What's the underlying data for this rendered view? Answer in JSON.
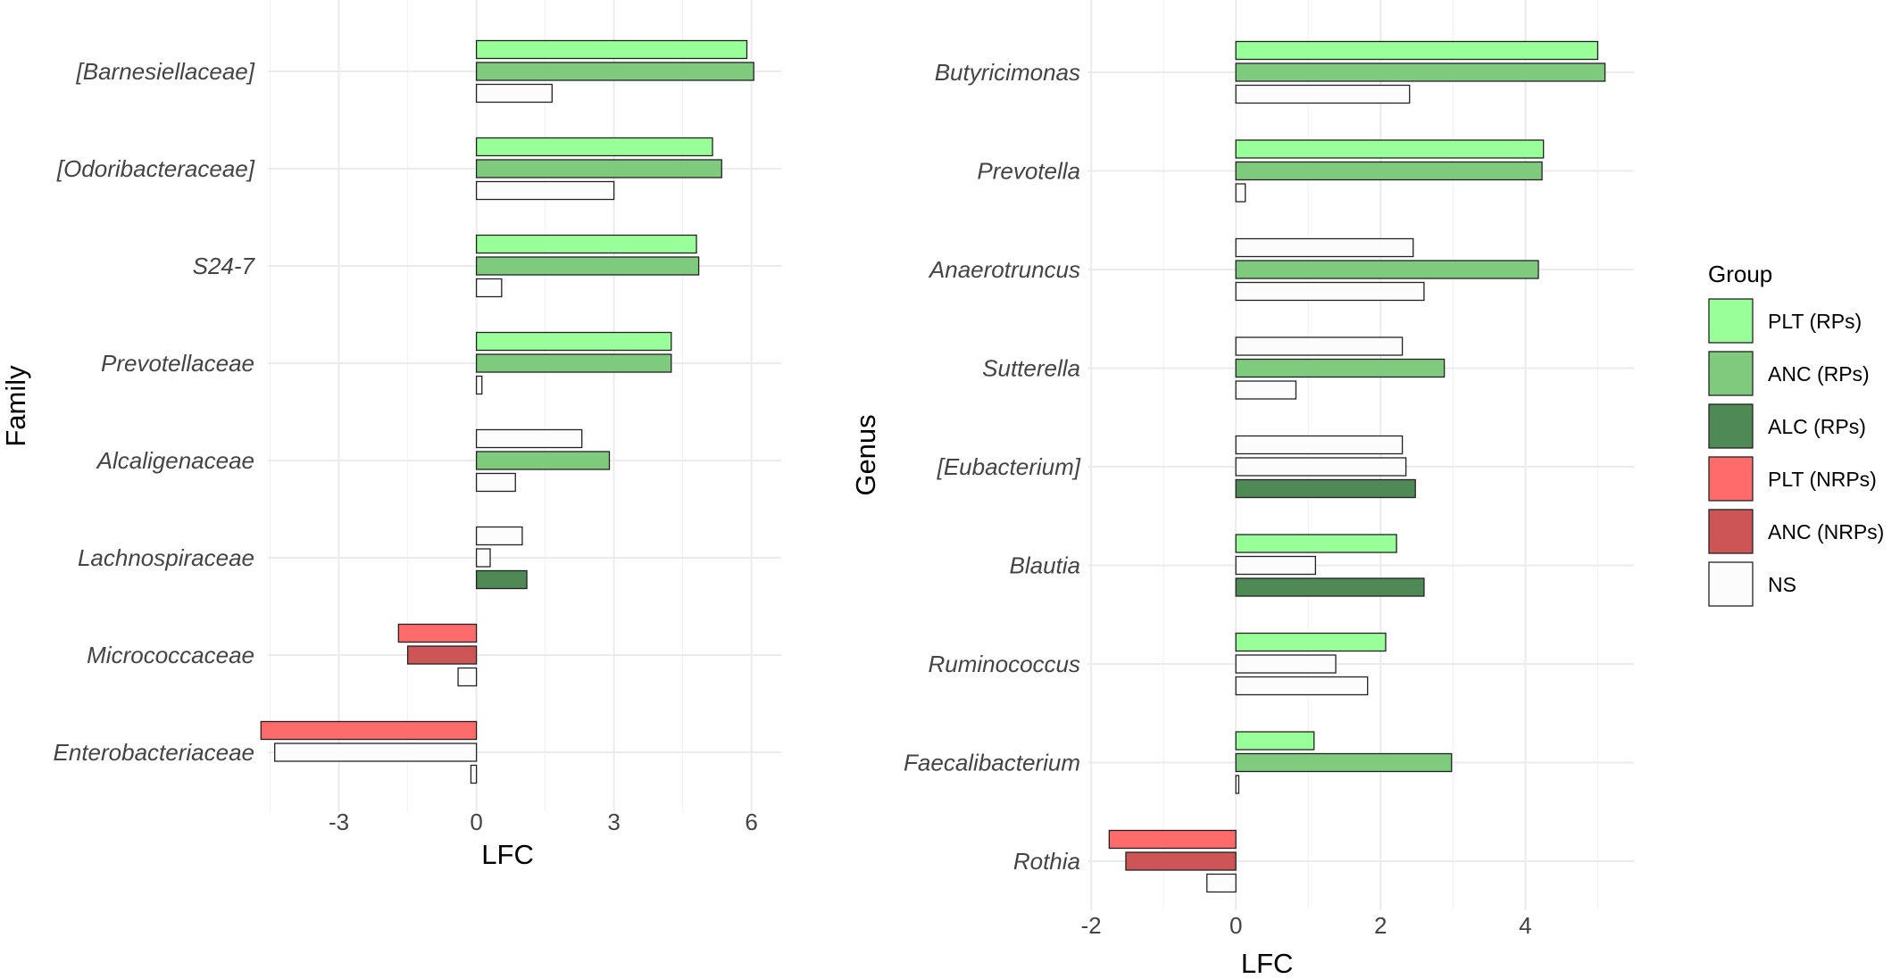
{
  "chart_data": [
    {
      "type": "bar",
      "orientation": "horizontal",
      "xlabel": "LFC",
      "ylabel": "Family",
      "xlim": [
        -4.55,
        6.65
      ],
      "x_ticks": [
        -3,
        0,
        3,
        6
      ],
      "x_tick_labels": [
        "-3",
        "0",
        "3",
        "6"
      ],
      "grid": true,
      "categories": [
        "[Barnesiellaceae]",
        "[Odoribacteraceae]",
        "S24-7",
        "Prevotellaceae",
        "Alcaligenaceae",
        "Lachnospiraceae",
        "Micrococcaceae",
        "Enterobacteriaceae"
      ],
      "bars": [
        [
          {
            "value": 5.9,
            "group": "PLT (RPs)"
          },
          {
            "value": 6.05,
            "group": "ANC (RPs)"
          },
          {
            "value": 1.65,
            "group": "NS"
          }
        ],
        [
          {
            "value": 5.15,
            "group": "PLT (RPs)"
          },
          {
            "value": 5.35,
            "group": "ANC (RPs)"
          },
          {
            "value": 3.0,
            "group": "NS"
          }
        ],
        [
          {
            "value": 4.8,
            "group": "PLT (RPs)"
          },
          {
            "value": 4.85,
            "group": "ANC (RPs)"
          },
          {
            "value": 0.55,
            "group": "NS"
          }
        ],
        [
          {
            "value": 4.25,
            "group": "PLT (RPs)"
          },
          {
            "value": 4.25,
            "group": "ANC (RPs)"
          },
          {
            "value": 0.12,
            "group": "NS"
          }
        ],
        [
          {
            "value": 2.3,
            "group": "NS"
          },
          {
            "value": 2.9,
            "group": "ANC (RPs)"
          },
          {
            "value": 0.85,
            "group": "NS"
          }
        ],
        [
          {
            "value": 1.0,
            "group": "NS"
          },
          {
            "value": 0.3,
            "group": "NS"
          },
          {
            "value": 1.1,
            "group": "ALC (RPs)"
          }
        ],
        [
          {
            "value": -1.7,
            "group": "PLT (NRPs)"
          },
          {
            "value": -1.5,
            "group": "ANC (NRPs)"
          },
          {
            "value": -0.4,
            "group": "NS"
          }
        ],
        [
          {
            "value": -4.7,
            "group": "PLT (NRPs)"
          },
          {
            "value": -4.4,
            "group": "NS"
          },
          {
            "value": -0.12,
            "group": "NS"
          }
        ]
      ]
    },
    {
      "type": "bar",
      "orientation": "horizontal",
      "xlabel": "LFC",
      "ylabel": "Genus",
      "xlim": [
        -2.05,
        5.5
      ],
      "x_ticks": [
        -2,
        0,
        2,
        4
      ],
      "x_tick_labels": [
        "-2",
        "0",
        "2",
        "4"
      ],
      "grid": true,
      "categories": [
        "Butyricimonas",
        "Prevotella",
        "Anaerotruncus",
        "Sutterella",
        "[Eubacterium]",
        "Blautia",
        "Ruminococcus",
        "Faecalibacterium",
        "Rothia"
      ],
      "bars": [
        [
          {
            "value": 5.0,
            "group": "PLT (RPs)"
          },
          {
            "value": 5.1,
            "group": "ANC (RPs)"
          },
          {
            "value": 2.4,
            "group": "NS"
          }
        ],
        [
          {
            "value": 4.25,
            "group": "PLT (RPs)"
          },
          {
            "value": 4.23,
            "group": "ANC (RPs)"
          },
          {
            "value": 0.13,
            "group": "NS"
          }
        ],
        [
          {
            "value": 2.45,
            "group": "NS"
          },
          {
            "value": 4.18,
            "group": "ANC (RPs)"
          },
          {
            "value": 2.6,
            "group": "NS"
          }
        ],
        [
          {
            "value": 2.3,
            "group": "NS"
          },
          {
            "value": 2.88,
            "group": "ANC (RPs)"
          },
          {
            "value": 0.83,
            "group": "NS"
          }
        ],
        [
          {
            "value": 2.3,
            "group": "NS"
          },
          {
            "value": 2.35,
            "group": "NS"
          },
          {
            "value": 2.48,
            "group": "ALC (RPs)"
          }
        ],
        [
          {
            "value": 2.22,
            "group": "PLT (RPs)"
          },
          {
            "value": 1.1,
            "group": "NS"
          },
          {
            "value": 2.6,
            "group": "ALC (RPs)"
          }
        ],
        [
          {
            "value": 2.07,
            "group": "PLT (RPs)"
          },
          {
            "value": 1.38,
            "group": "NS"
          },
          {
            "value": 1.82,
            "group": "NS"
          }
        ],
        [
          {
            "value": 1.08,
            "group": "PLT (RPs)"
          },
          {
            "value": 2.98,
            "group": "ANC (RPs)"
          },
          {
            "value": 0.04,
            "group": "NS"
          }
        ],
        [
          {
            "value": -1.75,
            "group": "PLT (NRPs)"
          },
          {
            "value": -1.52,
            "group": "ANC (NRPs)"
          },
          {
            "value": -0.4,
            "group": "NS"
          }
        ]
      ]
    }
  ],
  "legend": {
    "title": "Group",
    "placement": "right",
    "entries": [
      {
        "label": "PLT (RPs)",
        "color": "#99ff99"
      },
      {
        "label": "ANC (RPs)",
        "color": "#7ecb7e"
      },
      {
        "label": "ALC (RPs)",
        "color": "#4f8a56"
      },
      {
        "label": "PLT (NRPs)",
        "color": "#ff6b6b"
      },
      {
        "label": "ANC (NRPs)",
        "color": "#cd5555"
      },
      {
        "label": "NS",
        "color": "#fcfcfc"
      }
    ]
  }
}
